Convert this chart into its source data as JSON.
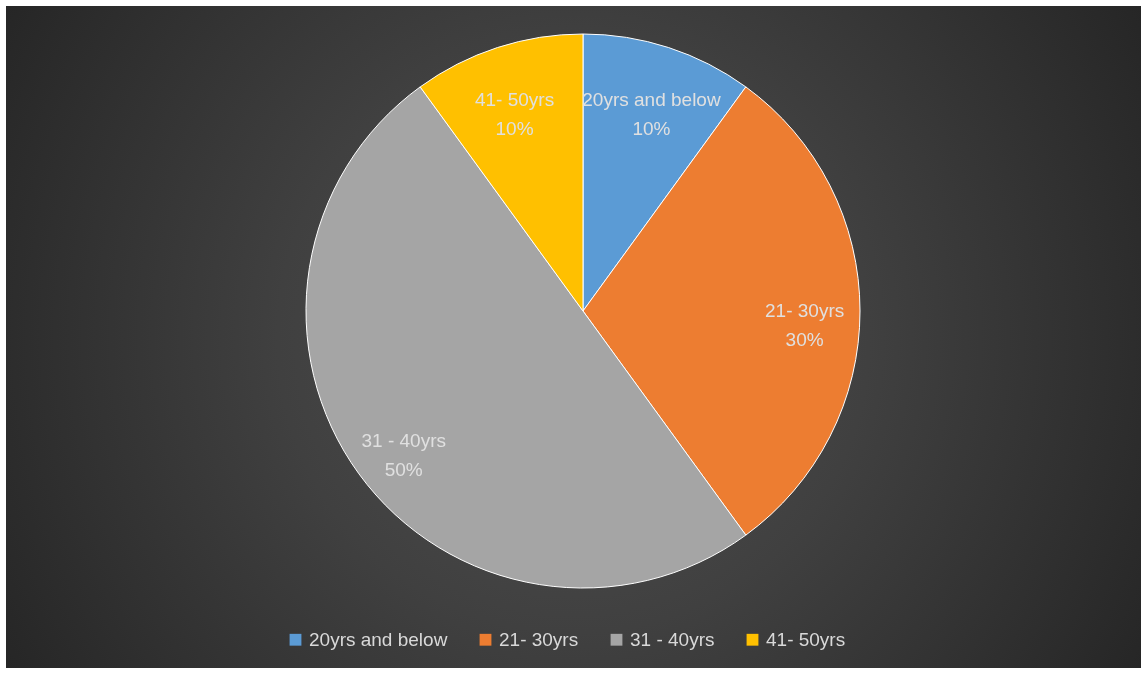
{
  "chart_data": {
    "type": "pie",
    "categories": [
      "20yrs and below",
      "21- 30yrs",
      "31 - 40yrs",
      "41- 50yrs"
    ],
    "values": [
      10,
      30,
      50,
      10
    ],
    "colors": [
      "#5b9bd5",
      "#ed7d31",
      "#a5a5a5",
      "#ffc000"
    ],
    "value_labels": [
      "10%",
      "30%",
      "50%",
      "10%"
    ],
    "legend": "bottom"
  }
}
